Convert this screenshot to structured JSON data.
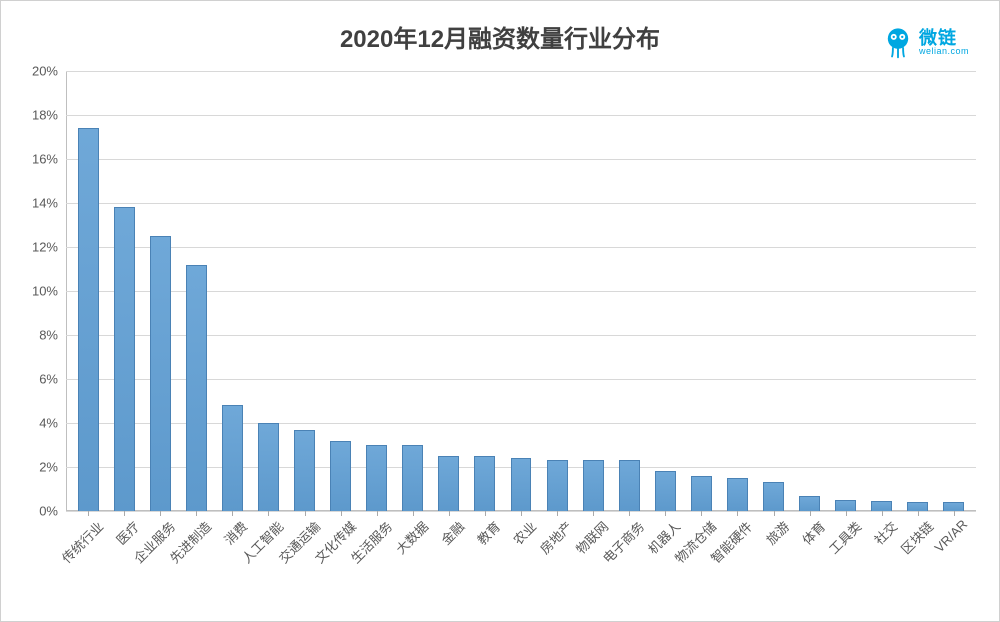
{
  "chart": {
    "type": "bar",
    "title": "2020年12月融资数量行业分布",
    "title_fontsize": 24,
    "title_color": "#404040",
    "background_color": "#ffffff",
    "grid_color": "#d8d8d8",
    "axis_label_color": "#595959",
    "axis_label_fontsize": 13,
    "bar_fill_top": "#6fa8d8",
    "bar_fill_bottom": "#5d99cc",
    "bar_border_color": "#4a82b5",
    "bar_width_ratio": 0.58,
    "x_label_rotation_deg": -45,
    "ylim": [
      0,
      20
    ],
    "ytick_step": 2,
    "y_suffix": "%",
    "categories": [
      "传统行业",
      "医疗",
      "企业服务",
      "先进制造",
      "消费",
      "人工智能",
      "交通运输",
      "文化传媒",
      "生活服务",
      "大数据",
      "金融",
      "教育",
      "农业",
      "房地产",
      "物联网",
      "电子商务",
      "机器人",
      "物流仓储",
      "智能硬件",
      "旅游",
      "体育",
      "工具类",
      "社交",
      "区块链",
      "VR/AR"
    ],
    "values": [
      17.4,
      13.8,
      12.5,
      11.2,
      4.8,
      4.0,
      3.7,
      3.2,
      3.0,
      3.0,
      2.5,
      2.5,
      2.4,
      2.3,
      2.3,
      2.3,
      1.8,
      1.6,
      1.5,
      1.3,
      0.7,
      0.5,
      0.45,
      0.4,
      0.4
    ]
  },
  "logo": {
    "brand_cn": "微链",
    "brand_en": "welian.com",
    "brand_color": "#00a7e1"
  }
}
